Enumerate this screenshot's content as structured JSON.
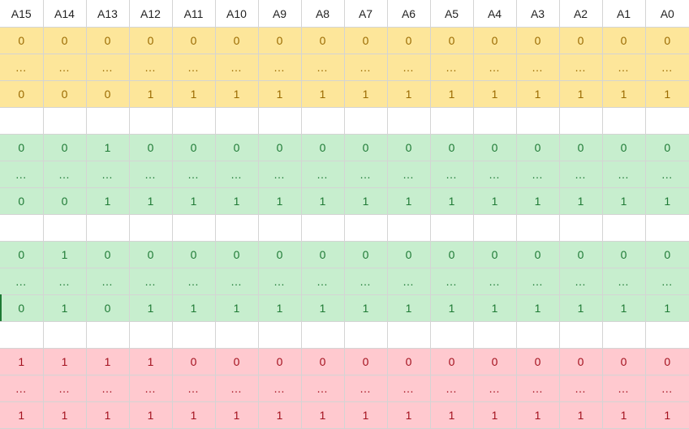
{
  "columns": [
    "A15",
    "A14",
    "A13",
    "A12",
    "A11",
    "A10",
    "A9",
    "A8",
    "A7",
    "A6",
    "A5",
    "A4",
    "A3",
    "A2",
    "A1",
    "A0"
  ],
  "colors": {
    "yellow_bg": "#fde69a",
    "yellow_fg": "#9a6a00",
    "green_bg": "#c7eece",
    "green_fg": "#1e7a35",
    "red_bg": "#ffc9cf",
    "red_fg": "#a3101d",
    "header_fg": "#222222",
    "grid": "#d4d4d4"
  },
  "blocks": [
    {
      "color": "yellow",
      "rows": [
        [
          "0",
          "0",
          "0",
          "0",
          "0",
          "0",
          "0",
          "0",
          "0",
          "0",
          "0",
          "0",
          "0",
          "0",
          "0",
          "0"
        ],
        [
          "…",
          "…",
          "…",
          "…",
          "…",
          "…",
          "…",
          "…",
          "…",
          "…",
          "…",
          "…",
          "…",
          "…",
          "…",
          "…"
        ],
        [
          "0",
          "0",
          "0",
          "1",
          "1",
          "1",
          "1",
          "1",
          "1",
          "1",
          "1",
          "1",
          "1",
          "1",
          "1",
          "1"
        ]
      ]
    },
    {
      "color": "green",
      "rows": [
        [
          "0",
          "0",
          "1",
          "0",
          "0",
          "0",
          "0",
          "0",
          "0",
          "0",
          "0",
          "0",
          "0",
          "0",
          "0",
          "0"
        ],
        [
          "…",
          "…",
          "…",
          "…",
          "…",
          "…",
          "…",
          "…",
          "…",
          "…",
          "…",
          "…",
          "…",
          "…",
          "…",
          "…"
        ],
        [
          "0",
          "0",
          "1",
          "1",
          "1",
          "1",
          "1",
          "1",
          "1",
          "1",
          "1",
          "1",
          "1",
          "1",
          "1",
          "1"
        ]
      ]
    },
    {
      "color": "green",
      "rows": [
        [
          "0",
          "1",
          "0",
          "0",
          "0",
          "0",
          "0",
          "0",
          "0",
          "0",
          "0",
          "0",
          "0",
          "0",
          "0",
          "0"
        ],
        [
          "…",
          "…",
          "…",
          "…",
          "…",
          "…",
          "…",
          "…",
          "…",
          "…",
          "…",
          "…",
          "…",
          "…",
          "…",
          "…"
        ],
        [
          "0",
          "1",
          "0",
          "1",
          "1",
          "1",
          "1",
          "1",
          "1",
          "1",
          "1",
          "1",
          "1",
          "1",
          "1",
          "1"
        ]
      ]
    },
    {
      "color": "red",
      "rows": [
        [
          "1",
          "1",
          "1",
          "1",
          "0",
          "0",
          "0",
          "0",
          "0",
          "0",
          "0",
          "0",
          "0",
          "0",
          "0",
          "0"
        ],
        [
          "…",
          "…",
          "…",
          "…",
          "…",
          "…",
          "…",
          "…",
          "…",
          "…",
          "…",
          "…",
          "…",
          "…",
          "…",
          "…"
        ],
        [
          "1",
          "1",
          "1",
          "1",
          "1",
          "1",
          "1",
          "1",
          "1",
          "1",
          "1",
          "1",
          "1",
          "1",
          "1",
          "1"
        ]
      ]
    }
  ]
}
